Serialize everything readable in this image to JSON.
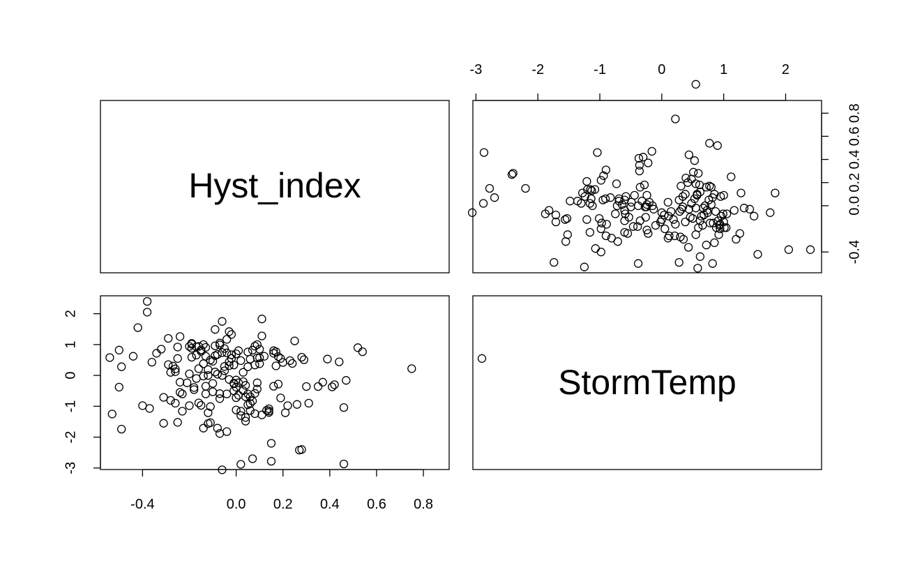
{
  "chart_data": {
    "type": "scatter",
    "layout": "pairs-matrix",
    "variables": [
      "Hyst_index",
      "StormTemp"
    ],
    "axes": {
      "Hyst_index": {
        "ticks": [
          -0.4,
          0.0,
          0.2,
          0.4,
          0.6,
          0.8
        ],
        "tick_labels": [
          "-0.4",
          "0.0",
          "0.2",
          "0.4",
          "0.6",
          "0.8"
        ],
        "range": [
          -0.58,
          0.91
        ]
      },
      "StormTemp": {
        "ticks": [
          -3,
          -2,
          -1,
          0,
          1,
          2
        ],
        "tick_labels": [
          "-3",
          "-2",
          "-1",
          "0",
          "1",
          "2"
        ],
        "range": [
          -3.05,
          2.58
        ]
      }
    },
    "points": [
      [
        -0.54,
        0.58
      ],
      [
        -0.53,
        -1.25
      ],
      [
        -0.5,
        0.82
      ],
      [
        -0.49,
        0.28
      ],
      [
        -0.5,
        -0.38
      ],
      [
        -0.49,
        -1.74
      ],
      [
        -0.44,
        0.62
      ],
      [
        -0.42,
        1.55
      ],
      [
        -0.4,
        -0.98
      ],
      [
        -0.38,
        2.4
      ],
      [
        -0.38,
        2.05
      ],
      [
        -0.37,
        -1.07
      ],
      [
        -0.36,
        0.43
      ],
      [
        -0.34,
        0.72
      ],
      [
        -0.32,
        0.85
      ],
      [
        -0.31,
        -0.71
      ],
      [
        -0.31,
        -1.55
      ],
      [
        -0.29,
        0.35
      ],
      [
        -0.29,
        1.2
      ],
      [
        -0.28,
        0.1
      ],
      [
        -0.28,
        -0.81
      ],
      [
        -0.27,
        0.3
      ],
      [
        -0.26,
        -0.9
      ],
      [
        -0.26,
        0.21
      ],
      [
        -0.26,
        0.12
      ],
      [
        -0.25,
        0.92
      ],
      [
        -0.25,
        0.55
      ],
      [
        -0.25,
        -1.52
      ],
      [
        -0.24,
        -0.22
      ],
      [
        -0.24,
        1.26
      ],
      [
        -0.24,
        -0.55
      ],
      [
        -0.23,
        -0.6
      ],
      [
        -0.23,
        -1.16
      ],
      [
        -0.21,
        -0.24
      ],
      [
        -0.2,
        0.05
      ],
      [
        -0.2,
        -0.98
      ],
      [
        -0.2,
        0.94
      ],
      [
        -0.19,
        1.04
      ],
      [
        -0.19,
        1.01
      ],
      [
        -0.19,
        0.88
      ],
      [
        -0.19,
        0.59
      ],
      [
        -0.18,
        -0.46
      ],
      [
        -0.18,
        -0.39
      ],
      [
        -0.17,
        0.93
      ],
      [
        -0.17,
        0.66
      ],
      [
        -0.17,
        -0.1
      ],
      [
        -0.16,
        0.94
      ],
      [
        -0.16,
        0.22
      ],
      [
        -0.16,
        -0.89
      ],
      [
        -0.15,
        -0.97
      ],
      [
        -0.15,
        0.78
      ],
      [
        -0.15,
        0.83
      ],
      [
        -0.14,
        -0.02
      ],
      [
        -0.14,
        1.0
      ],
      [
        -0.14,
        0.38
      ],
      [
        -0.14,
        -1.71
      ],
      [
        -0.13,
        0.62
      ],
      [
        -0.13,
        0.91
      ],
      [
        -0.13,
        -0.6
      ],
      [
        -0.12,
        0.19
      ],
      [
        -0.12,
        0.0
      ],
      [
        -0.12,
        -1.21
      ],
      [
        -0.12,
        -1.56
      ],
      [
        -0.11,
        -1.53
      ],
      [
        -0.11,
        -1.01
      ],
      [
        -0.1,
        -0.26
      ],
      [
        -0.1,
        0.46
      ],
      [
        -0.1,
        -0.53
      ],
      [
        -0.09,
        0.96
      ],
      [
        -0.09,
        0.11
      ],
      [
        -0.09,
        0.64
      ],
      [
        -0.09,
        1.49
      ],
      [
        -0.08,
        0.04
      ],
      [
        -0.08,
        -1.71
      ],
      [
        -0.07,
        1.05
      ],
      [
        -0.07,
        -1.88
      ],
      [
        -0.07,
        0.99
      ],
      [
        -0.07,
        -0.59
      ],
      [
        -0.06,
        1.75
      ],
      [
        -0.06,
        -3.06
      ],
      [
        -0.06,
        0.74
      ],
      [
        -0.06,
        0.0
      ],
      [
        -0.05,
        0.87
      ],
      [
        -0.05,
        0.29
      ],
      [
        -0.04,
        0.73
      ],
      [
        -0.04,
        1.17
      ],
      [
        -0.04,
        -0.6
      ],
      [
        -0.04,
        -1.82
      ],
      [
        -0.03,
        0.32
      ],
      [
        -0.03,
        -0.13
      ],
      [
        -0.03,
        1.42
      ],
      [
        -0.02,
        1.33
      ],
      [
        -0.02,
        0.67
      ],
      [
        -0.02,
        0.55
      ],
      [
        -0.01,
        0.34
      ],
      [
        -0.01,
        -0.25
      ],
      [
        -0.01,
        -0.27
      ],
      [
        0.0,
        -0.38
      ],
      [
        0.0,
        -0.72
      ],
      [
        0.0,
        -1.12
      ],
      [
        0.0,
        -0.15
      ],
      [
        0.01,
        -0.24
      ],
      [
        0.01,
        -0.64
      ],
      [
        0.01,
        0.8
      ],
      [
        0.02,
        -1.3
      ],
      [
        0.02,
        -2.88
      ],
      [
        0.02,
        -1.16
      ],
      [
        0.03,
        -0.49
      ],
      [
        0.03,
        -0.2
      ],
      [
        0.04,
        -0.69
      ],
      [
        0.04,
        -1.48
      ],
      [
        0.04,
        -1.36
      ],
      [
        0.04,
        -0.32
      ],
      [
        0.05,
        -0.95
      ],
      [
        0.05,
        -0.6
      ],
      [
        0.05,
        0.76
      ],
      [
        0.05,
        0.28
      ],
      [
        0.06,
        -1.14
      ],
      [
        0.06,
        -0.91
      ],
      [
        0.06,
        0.53
      ],
      [
        0.06,
        -0.69
      ],
      [
        0.07,
        0.82
      ],
      [
        0.07,
        -2.7
      ],
      [
        0.07,
        -0.83
      ],
      [
        0.08,
        0.34
      ],
      [
        0.08,
        -0.58
      ],
      [
        0.08,
        -1.24
      ],
      [
        0.08,
        0.95
      ],
      [
        0.09,
        0.57
      ],
      [
        0.09,
        1.0
      ],
      [
        0.09,
        -0.44
      ],
      [
        0.09,
        -0.24
      ],
      [
        0.1,
        0.38
      ],
      [
        0.1,
        0.85
      ],
      [
        0.1,
        0.57
      ],
      [
        0.11,
        -1.28
      ],
      [
        0.11,
        1.28
      ],
      [
        0.11,
        1.83
      ],
      [
        0.12,
        0.62
      ],
      [
        0.13,
        -1.13
      ],
      [
        0.14,
        -1.2
      ],
      [
        0.14,
        -1.15
      ],
      [
        0.14,
        -1.08
      ],
      [
        0.15,
        -2.2
      ],
      [
        0.15,
        -2.78
      ],
      [
        0.16,
        -0.35
      ],
      [
        0.16,
        0.72
      ],
      [
        0.16,
        0.8
      ],
      [
        0.17,
        0.77
      ],
      [
        0.17,
        0.31
      ],
      [
        0.18,
        -0.28
      ],
      [
        0.18,
        0.61
      ],
      [
        0.19,
        -0.73
      ],
      [
        0.19,
        0.55
      ],
      [
        0.2,
        0.42
      ],
      [
        0.21,
        -1.21
      ],
      [
        0.22,
        -0.98
      ],
      [
        0.23,
        0.48
      ],
      [
        0.24,
        0.39
      ],
      [
        0.25,
        1.12
      ],
      [
        0.26,
        -0.94
      ],
      [
        0.27,
        -2.42
      ],
      [
        0.28,
        -2.4
      ],
      [
        0.28,
        0.59
      ],
      [
        0.29,
        0.51
      ],
      [
        0.3,
        -0.36
      ],
      [
        0.31,
        -0.9
      ],
      [
        0.35,
        -0.36
      ],
      [
        0.37,
        -0.22
      ],
      [
        0.39,
        0.53
      ],
      [
        0.41,
        -0.37
      ],
      [
        0.42,
        -0.3
      ],
      [
        0.44,
        0.44
      ],
      [
        0.46,
        -1.04
      ],
      [
        0.46,
        -2.87
      ],
      [
        0.47,
        -0.16
      ],
      [
        0.52,
        0.9
      ],
      [
        0.54,
        0.77
      ],
      [
        0.75,
        0.22
      ],
      [
        1.05,
        0.55
      ],
      [
        -0.08,
        0.68
      ],
      [
        -0.03,
        0.44
      ],
      [
        0.0,
        0.7
      ],
      [
        0.02,
        0.48
      ],
      [
        -0.11,
        0.5
      ],
      [
        -0.05,
        0.15
      ],
      [
        -0.13,
        -0.35
      ],
      [
        -0.07,
        -0.75
      ],
      [
        0.03,
        0.1
      ],
      [
        -0.01,
        -0.5
      ]
    ]
  },
  "icons": []
}
